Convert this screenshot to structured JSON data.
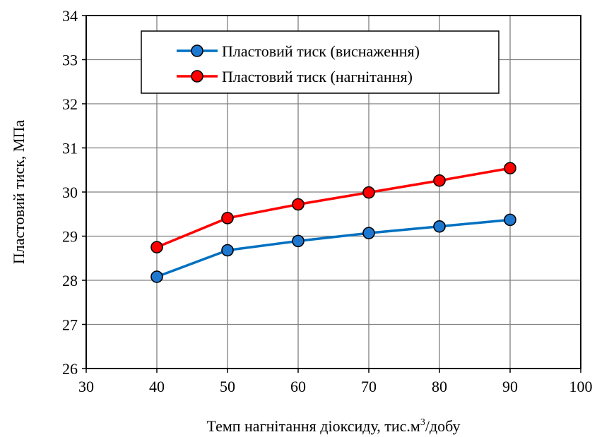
{
  "chart_data": {
    "type": "line",
    "xlabel": "Темп нагнітання діоксиду, тис.м",
    "xlabel_sup": "3",
    "xlabel_suffix": "/добу",
    "ylabel": "Пластовий тиск, МПа",
    "xlim": [
      30,
      100
    ],
    "ylim": [
      26,
      34
    ],
    "xticks": [
      "30",
      "40",
      "50",
      "60",
      "70",
      "80",
      "90",
      "100"
    ],
    "yticks": [
      "26",
      "27",
      "28",
      "29",
      "30",
      "31",
      "32",
      "33",
      "34"
    ],
    "grid": true,
    "legend_position": "top-center",
    "x": [
      40,
      50,
      60,
      70,
      80,
      90
    ],
    "series": [
      {
        "name": "Пластовий тиск (виснаження)",
        "values": [
          28.08,
          28.68,
          28.89,
          29.07,
          29.22,
          29.37
        ],
        "color": "#0070C0",
        "marker_color": "#1F78D0"
      },
      {
        "name": "Пластовий тиск (нагнітання)",
        "values": [
          28.75,
          29.41,
          29.72,
          29.99,
          30.26,
          30.54
        ],
        "color": "#FF0000",
        "marker_color": "#FF0000"
      }
    ]
  }
}
